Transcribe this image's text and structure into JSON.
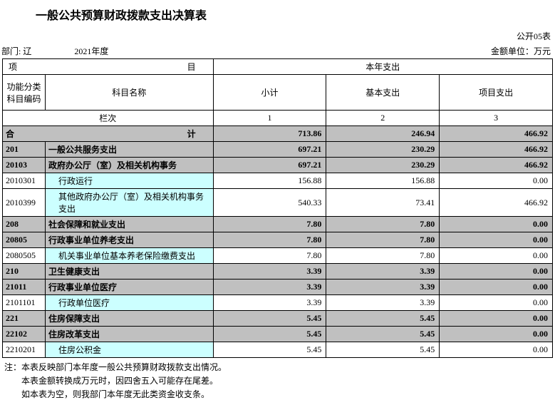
{
  "title": "一般公共预算财政拨款支出决算表",
  "form_no": "公开05表",
  "dept_label": "部门:",
  "dept_value_partial": "辽",
  "year": "2021年度",
  "unit_label": "金额单位：万元",
  "headers": {
    "project": "项",
    "mu": "目",
    "spending": "本年支出",
    "func_code": "功能分类科目编码",
    "subject_name": "科目名称",
    "subtotal": "小计",
    "basic": "基本支出",
    "project_spend": "项目支出",
    "lanci": "栏次",
    "col1": "1",
    "col2": "2",
    "col3": "3",
    "total_label_l": "合",
    "total_label_r": "计"
  },
  "totals": {
    "subtotal": "713.86",
    "basic": "246.94",
    "project": "466.92"
  },
  "rows": [
    {
      "code": "201",
      "name": "一般公共服务支出",
      "v1": "697.21",
      "v2": "230.29",
      "v3": "466.92",
      "style": "grey",
      "indent": 0
    },
    {
      "code": "20103",
      "name": "政府办公厅（室）及相关机构事务",
      "v1": "697.21",
      "v2": "230.29",
      "v3": "466.92",
      "style": "grey",
      "indent": 0
    },
    {
      "code": "2010301",
      "name": "行政运行",
      "v1": "156.88",
      "v2": "156.88",
      "v3": "0.00",
      "style": "cyan",
      "indent": 1
    },
    {
      "code": "2010399",
      "name": "其他政府办公厅（室）及相关机构事务支出",
      "v1": "540.33",
      "v2": "73.41",
      "v3": "466.92",
      "style": "cyan",
      "indent": 1
    },
    {
      "code": "208",
      "name": "社会保障和就业支出",
      "v1": "7.80",
      "v2": "7.80",
      "v3": "0.00",
      "style": "grey",
      "indent": 0
    },
    {
      "code": "20805",
      "name": "行政事业单位养老支出",
      "v1": "7.80",
      "v2": "7.80",
      "v3": "0.00",
      "style": "grey",
      "indent": 0
    },
    {
      "code": "2080505",
      "name": "机关事业单位基本养老保险缴费支出",
      "v1": "7.80",
      "v2": "7.80",
      "v3": "0.00",
      "style": "cyan",
      "indent": 1
    },
    {
      "code": "210",
      "name": "卫生健康支出",
      "v1": "3.39",
      "v2": "3.39",
      "v3": "0.00",
      "style": "grey",
      "indent": 0
    },
    {
      "code": "21011",
      "name": "行政事业单位医疗",
      "v1": "3.39",
      "v2": "3.39",
      "v3": "0.00",
      "style": "grey",
      "indent": 0
    },
    {
      "code": "2101101",
      "name": "行政单位医疗",
      "v1": "3.39",
      "v2": "3.39",
      "v3": "0.00",
      "style": "cyan",
      "indent": 1
    },
    {
      "code": "221",
      "name": "住房保障支出",
      "v1": "5.45",
      "v2": "5.45",
      "v3": "0.00",
      "style": "grey",
      "indent": 0
    },
    {
      "code": "22102",
      "name": "住房改革支出",
      "v1": "5.45",
      "v2": "5.45",
      "v3": "0.00",
      "style": "grey",
      "indent": 0
    },
    {
      "code": "2210201",
      "name": "住房公积金",
      "v1": "5.45",
      "v2": "5.45",
      "v3": "0.00",
      "style": "cyan",
      "indent": 1
    }
  ],
  "notes": [
    "注：本表反映部门本年度一般公共预算财政拨款支出情况。",
    "本表金额转换成万元时，因四舍五入可能存在尾差。",
    "如本表为空，则我部门本年度无此类资金收支条。"
  ],
  "colors": {
    "grey": "#c0c0c0",
    "cyan": "#ccffff",
    "border": "#000000",
    "bg": "#ffffff"
  }
}
